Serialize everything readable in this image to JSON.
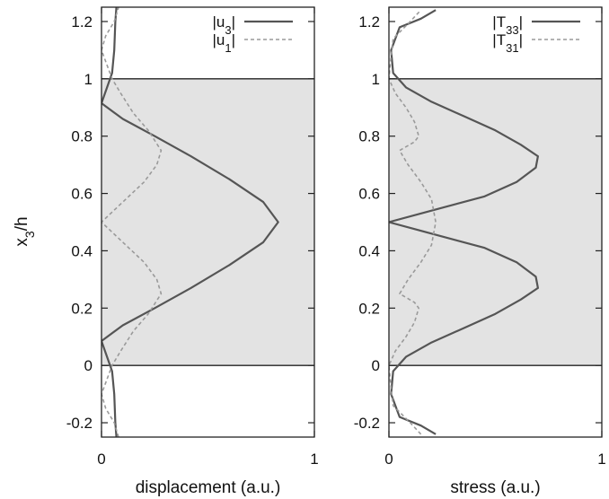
{
  "chart_data": [
    {
      "type": "line",
      "xlabel": "displacement (a.u.)",
      "ylabel": "x3/h",
      "xlim": [
        0,
        1
      ],
      "ylim": [
        -0.25,
        1.25
      ],
      "x_ticks": [
        "0",
        "1"
      ],
      "y_ticks": [
        "-0.2",
        "0",
        "0.2",
        "0.4",
        "0.6",
        "0.8",
        "1",
        "1.2"
      ],
      "y_tick_values": [
        -0.2,
        0,
        0.2,
        0.4,
        0.6,
        0.8,
        1,
        1.2
      ],
      "shaded_band_y": [
        0,
        1
      ],
      "legend_position": "top-right",
      "series": [
        {
          "name": "|u3|",
          "style": "solid",
          "color": "#555555",
          "points": [
            [
              0.07,
              -0.25
            ],
            [
              0.065,
              -0.2
            ],
            [
              0.06,
              -0.1
            ],
            [
              0.05,
              -0.02
            ],
            [
              0.0,
              0.085
            ],
            [
              0.1,
              0.14
            ],
            [
              0.25,
              0.2
            ],
            [
              0.42,
              0.27
            ],
            [
              0.6,
              0.35
            ],
            [
              0.76,
              0.43
            ],
            [
              0.83,
              0.5
            ],
            [
              0.76,
              0.57
            ],
            [
              0.6,
              0.65
            ],
            [
              0.42,
              0.73
            ],
            [
              0.25,
              0.8
            ],
            [
              0.1,
              0.86
            ],
            [
              0.0,
              0.915
            ],
            [
              0.05,
              1.02
            ],
            [
              0.06,
              1.1
            ],
            [
              0.065,
              1.2
            ],
            [
              0.07,
              1.25
            ]
          ]
        },
        {
          "name": "|u1|",
          "style": "dashed",
          "color": "#9a9a9a",
          "points": [
            [
              0.08,
              -0.25
            ],
            [
              0.06,
              -0.2
            ],
            [
              0.02,
              -0.15
            ],
            [
              0.0,
              -0.1
            ],
            [
              0.05,
              0.0
            ],
            [
              0.09,
              0.05
            ],
            [
              0.15,
              0.12
            ],
            [
              0.22,
              0.18
            ],
            [
              0.28,
              0.25
            ],
            [
              0.26,
              0.3
            ],
            [
              0.2,
              0.36
            ],
            [
              0.1,
              0.43
            ],
            [
              0.0,
              0.5
            ],
            [
              0.1,
              0.57
            ],
            [
              0.2,
              0.64
            ],
            [
              0.26,
              0.7
            ],
            [
              0.28,
              0.75
            ],
            [
              0.22,
              0.82
            ],
            [
              0.15,
              0.88
            ],
            [
              0.09,
              0.95
            ],
            [
              0.05,
              1.0
            ],
            [
              0.0,
              1.1
            ],
            [
              0.02,
              1.15
            ],
            [
              0.06,
              1.2
            ],
            [
              0.08,
              1.25
            ]
          ]
        }
      ]
    },
    {
      "type": "line",
      "xlabel": "stress (a.u.)",
      "ylabel": "",
      "xlim": [
        0,
        1
      ],
      "ylim": [
        -0.25,
        1.25
      ],
      "x_ticks": [
        "0",
        "1"
      ],
      "y_ticks": [
        "-0.2",
        "0",
        "0.2",
        "0.4",
        "0.6",
        "0.8",
        "1",
        "1.2"
      ],
      "y_tick_values": [
        -0.2,
        0,
        0.2,
        0.4,
        0.6,
        0.8,
        1,
        1.2
      ],
      "shaded_band_y": [
        0,
        1
      ],
      "legend_position": "top-right",
      "series": [
        {
          "name": "|T33|",
          "style": "solid",
          "color": "#555555",
          "points": [
            [
              0.22,
              -0.24
            ],
            [
              0.15,
              -0.21
            ],
            [
              0.05,
              -0.18
            ],
            [
              0.01,
              -0.1
            ],
            [
              0.02,
              -0.02
            ],
            [
              0.08,
              0.03
            ],
            [
              0.2,
              0.08
            ],
            [
              0.35,
              0.13
            ],
            [
              0.5,
              0.18
            ],
            [
              0.62,
              0.23
            ],
            [
              0.7,
              0.27
            ],
            [
              0.69,
              0.31
            ],
            [
              0.6,
              0.36
            ],
            [
              0.45,
              0.41
            ],
            [
              0.2,
              0.46
            ],
            [
              0.0,
              0.5
            ],
            [
              0.2,
              0.54
            ],
            [
              0.45,
              0.59
            ],
            [
              0.6,
              0.64
            ],
            [
              0.69,
              0.69
            ],
            [
              0.7,
              0.73
            ],
            [
              0.62,
              0.77
            ],
            [
              0.5,
              0.82
            ],
            [
              0.35,
              0.87
            ],
            [
              0.2,
              0.92
            ],
            [
              0.08,
              0.97
            ],
            [
              0.02,
              1.02
            ],
            [
              0.01,
              1.1
            ],
            [
              0.05,
              1.18
            ],
            [
              0.15,
              1.21
            ],
            [
              0.22,
              1.24
            ]
          ]
        },
        {
          "name": "|T31|",
          "style": "dashed",
          "color": "#9a9a9a",
          "points": [
            [
              0.15,
              -0.24
            ],
            [
              0.1,
              -0.2
            ],
            [
              0.02,
              -0.14
            ],
            [
              0.01,
              -0.08
            ],
            [
              0.0,
              0.0
            ],
            [
              0.03,
              0.05
            ],
            [
              0.08,
              0.1
            ],
            [
              0.12,
              0.15
            ],
            [
              0.14,
              0.2
            ],
            [
              0.12,
              0.22
            ],
            [
              0.05,
              0.25
            ],
            [
              0.09,
              0.3
            ],
            [
              0.15,
              0.36
            ],
            [
              0.2,
              0.42
            ],
            [
              0.22,
              0.5
            ],
            [
              0.2,
              0.58
            ],
            [
              0.15,
              0.64
            ],
            [
              0.09,
              0.7
            ],
            [
              0.05,
              0.75
            ],
            [
              0.12,
              0.78
            ],
            [
              0.14,
              0.8
            ],
            [
              0.12,
              0.85
            ],
            [
              0.08,
              0.9
            ],
            [
              0.03,
              0.95
            ],
            [
              0.0,
              1.0
            ],
            [
              0.01,
              1.08
            ],
            [
              0.02,
              1.14
            ],
            [
              0.1,
              1.2
            ],
            [
              0.15,
              1.24
            ]
          ]
        }
      ]
    }
  ]
}
